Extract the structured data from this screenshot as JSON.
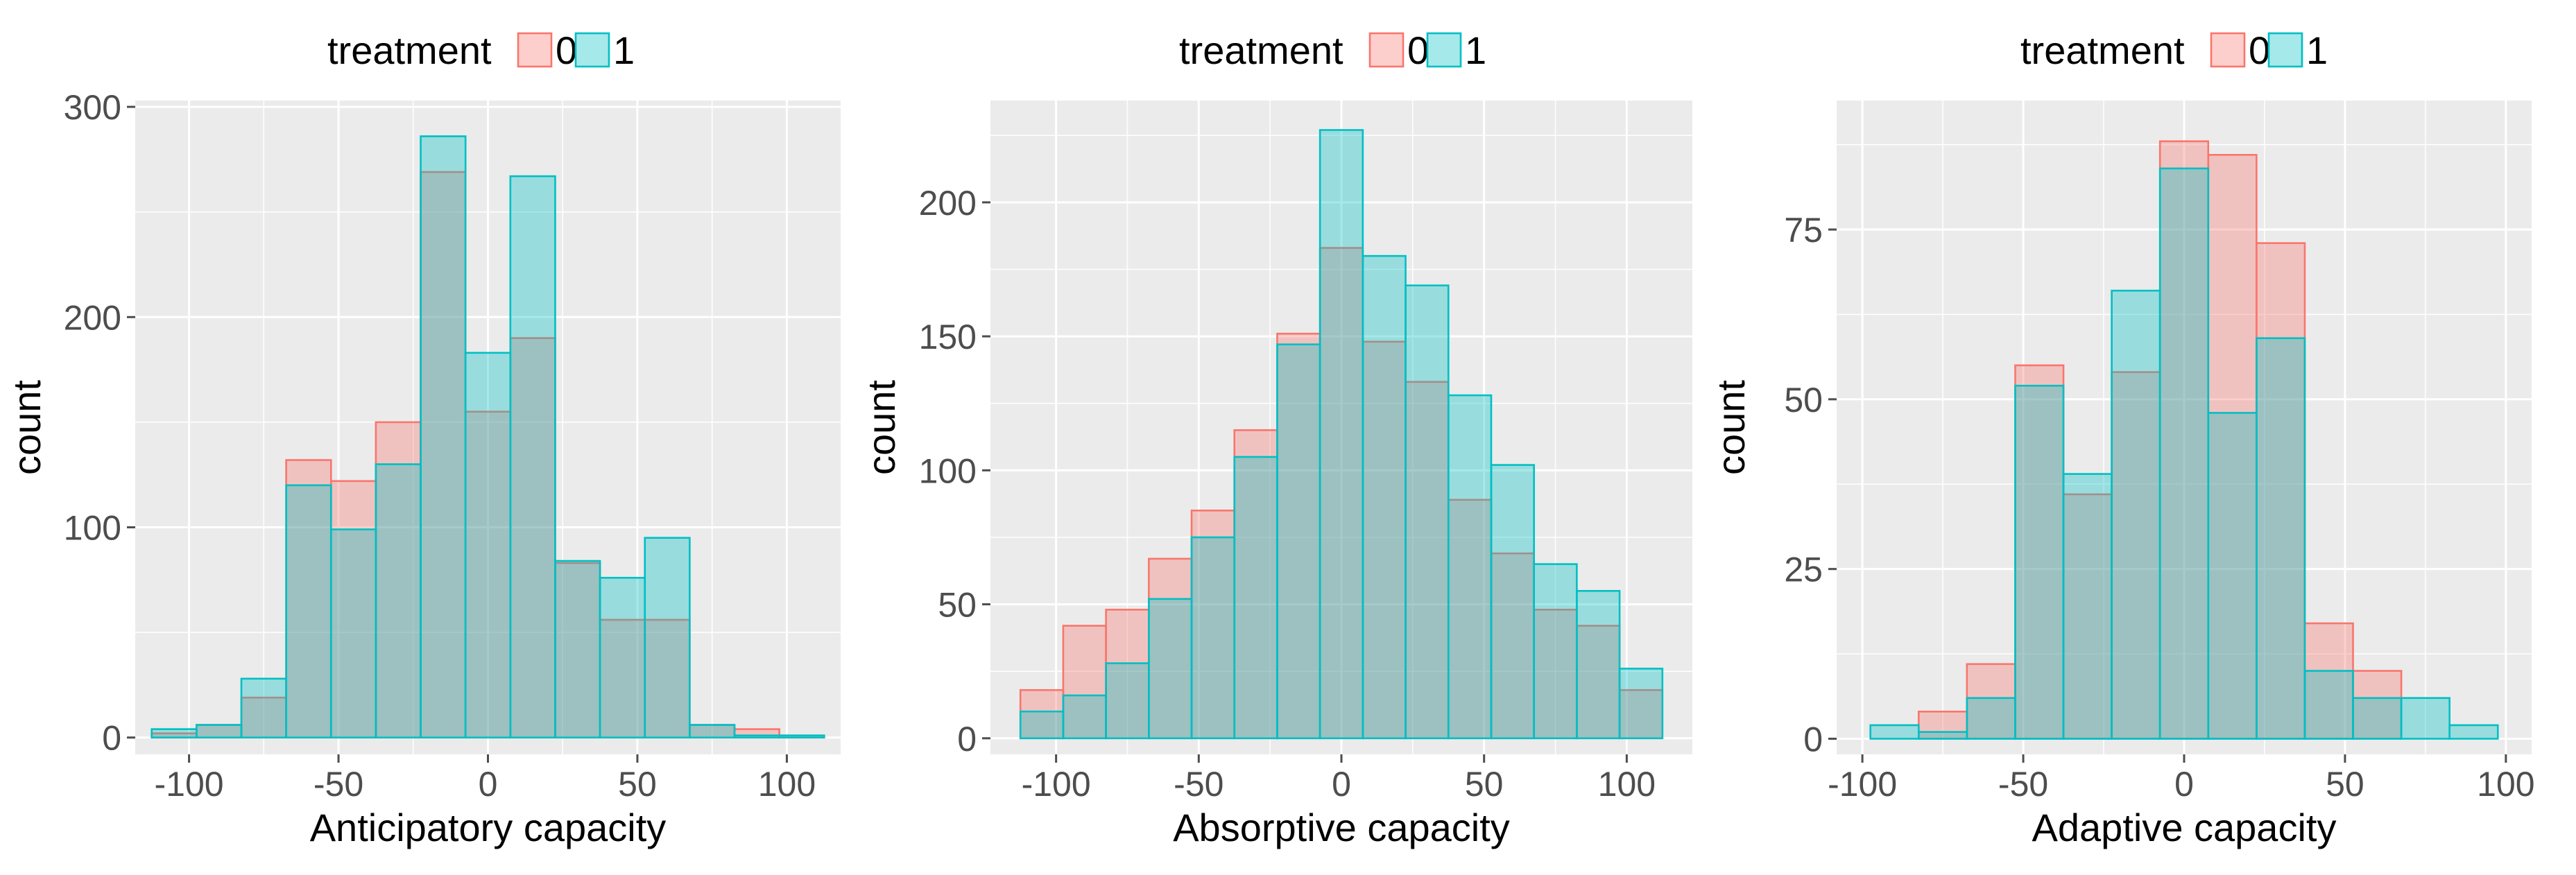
{
  "colors": {
    "treatment0_fill": "#F8766D",
    "treatment0_line": "#F8766D",
    "treatment1_fill": "#00BFC4",
    "treatment1_line": "#00BFC4",
    "panel_bg": "#EBEBEB",
    "grid": "#FFFFFF",
    "text": "#333333",
    "tick_text": "#4D4D4D"
  },
  "chart_data": [
    {
      "type": "bar",
      "title": "",
      "xlabel": "Anticipatory capacity",
      "ylabel": "count",
      "legend_title": "treatment",
      "legend_labels": [
        "0",
        "1"
      ],
      "legend_position": "top",
      "xlim": [
        -118,
        118
      ],
      "ylim": [
        -8,
        303
      ],
      "x_ticks": [
        -100,
        -50,
        0,
        50,
        100
      ],
      "y_ticks": [
        0,
        100,
        200,
        300
      ],
      "bin_edges": [
        -112.5,
        -97.5,
        -82.5,
        -67.5,
        -52.5,
        -37.5,
        -22.5,
        -7.5,
        7.5,
        22.5,
        37.5,
        52.5,
        67.5,
        82.5,
        97.5,
        112.5
      ],
      "series": [
        {
          "name": "0",
          "values": [
            2,
            6,
            19,
            132,
            122,
            150,
            269,
            155,
            190,
            83,
            56,
            56,
            6,
            4,
            1
          ]
        },
        {
          "name": "1",
          "values": [
            4,
            6,
            28,
            120,
            99,
            130,
            286,
            183,
            267,
            84,
            76,
            95,
            6,
            1,
            1
          ]
        }
      ]
    },
    {
      "type": "bar",
      "title": "",
      "xlabel": "Absorptive capacity",
      "ylabel": "count",
      "legend_title": "treatment",
      "legend_labels": [
        "0",
        "1"
      ],
      "legend_position": "top",
      "xlim": [
        -123,
        123
      ],
      "ylim": [
        -6,
        238
      ],
      "x_ticks": [
        -100,
        -50,
        0,
        50,
        100
      ],
      "y_ticks": [
        0,
        50,
        100,
        150,
        200
      ],
      "bin_edges": [
        -112.5,
        -97.5,
        -82.5,
        -67.5,
        -52.5,
        -37.5,
        -22.5,
        -7.5,
        7.5,
        22.5,
        37.5,
        52.5,
        67.5,
        82.5,
        97.5,
        112.5
      ],
      "series": [
        {
          "name": "0",
          "values": [
            18,
            42,
            48,
            67,
            85,
            115,
            151,
            183,
            148,
            133,
            89,
            69,
            48,
            42,
            18
          ]
        },
        {
          "name": "1",
          "values": [
            10,
            16,
            28,
            52,
            75,
            105,
            147,
            227,
            180,
            169,
            128,
            102,
            65,
            55,
            26
          ]
        }
      ]
    },
    {
      "type": "bar",
      "title": "",
      "xlabel": "Adaptive capacity",
      "ylabel": "count",
      "legend_title": "treatment",
      "legend_labels": [
        "0",
        "1"
      ],
      "legend_position": "top",
      "xlim": [
        -108,
        108
      ],
      "ylim": [
        -2.3,
        94
      ],
      "x_ticks": [
        -100,
        -50,
        0,
        50,
        100
      ],
      "y_ticks": [
        0,
        25,
        50,
        75
      ],
      "bin_edges": [
        -97.5,
        -82.5,
        -67.5,
        -52.5,
        -37.5,
        -22.5,
        -7.5,
        7.5,
        22.5,
        37.5,
        52.5,
        67.5,
        82.5,
        97.5
      ],
      "series": [
        {
          "name": "0",
          "values": [
            0,
            4,
            11,
            55,
            36,
            54,
            88,
            86,
            73,
            17,
            10,
            0,
            0
          ]
        },
        {
          "name": "1",
          "values": [
            2,
            1,
            6,
            52,
            39,
            66,
            84,
            48,
            59,
            10,
            6,
            6,
            2
          ]
        }
      ]
    }
  ]
}
